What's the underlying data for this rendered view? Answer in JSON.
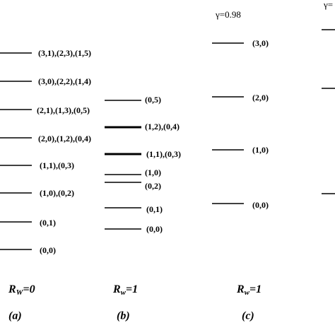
{
  "columns": [
    {
      "levels": [
        "(3,1),(2,3),(1,5)",
        "(3,0),(2,2),(1,4)",
        "(2,1),(1,3),(0,5)",
        "(2,0),(1,2),(0,4)",
        "(1,1),(0,3)",
        "(1,0),(0,2)",
        "(0,1)",
        "(0,0)"
      ],
      "footer": {
        "symbol": "R",
        "subscript": "W",
        "value": "=0"
      },
      "caption": "(a)"
    },
    {
      "levels": [
        "(0,5)",
        "(1,2),(0,4)",
        "(1,1),(0,3)",
        "(1,0)",
        "(0,2)",
        "(0,1)",
        "(0,0)"
      ],
      "footer": {
        "symbol": "R",
        "subscript": "w",
        "value": "=1"
      },
      "caption": "(b)"
    },
    {
      "gamma": "γ=0.98",
      "levels": [
        "(3,0)",
        "(2,0)",
        "(1,0)",
        "(0,0)"
      ],
      "footer": {
        "symbol": "R",
        "subscript": "w",
        "value": "=1"
      },
      "caption": "(c)"
    },
    {
      "gamma": "γ="
    }
  ]
}
